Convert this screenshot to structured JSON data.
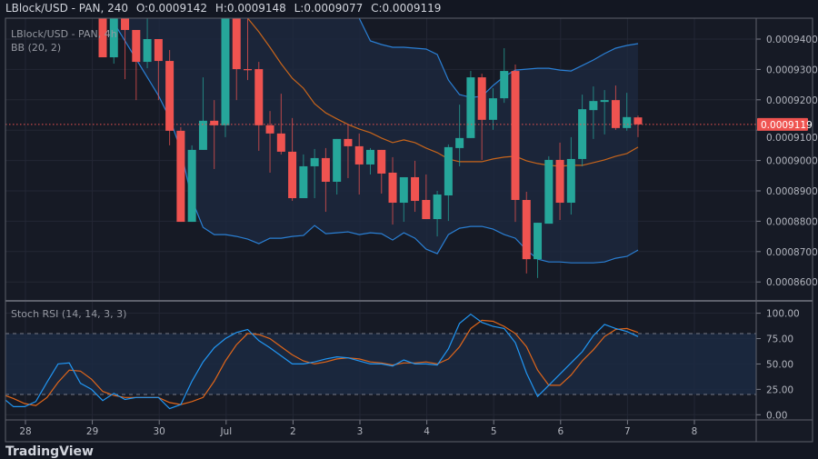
{
  "header": {
    "symbol": "LBlock/USD - PAN, 240",
    "open": "O:0.0009142",
    "high": "H:0.0009148",
    "low": "L:0.0009077",
    "close": "C:0.0009119"
  },
  "main_legend": {
    "symbol": "LBlock/USD - PAN, 4h",
    "indicator": "BB (20, 2)"
  },
  "stoch_legend": "Stoch RSI (14, 14, 3, 3)",
  "price_axis": [
    "0.0009400",
    "0.0009300",
    "0.0009200",
    "0.0009100",
    "0.0009000",
    "0.0008900",
    "0.0008800",
    "0.0008700",
    "0.0008600"
  ],
  "last_price_label": "0.0009119",
  "stoch_axis": [
    "100.00",
    "75.00",
    "50.00",
    "25.00",
    "0.00"
  ],
  "time_axis": [
    "28",
    "29",
    "30",
    "Jul",
    "2",
    "3",
    "4",
    "5",
    "6",
    "7",
    "8"
  ],
  "logo": "TradingView",
  "colors": {
    "up": "#26a69a",
    "down": "#ef5350",
    "bb_band": "#2a7fd4",
    "bb_basis": "#c8651b",
    "stoch_k": "#2196f3",
    "stoch_d": "#e0661a",
    "last_price": "#ef5350",
    "background": "#131722"
  },
  "chart_data": {
    "type": "candlestick",
    "interval": "4h",
    "ohlc": [
      [
        0.0009484,
        0.0009484,
        0.000934,
        0.000934
      ],
      [
        0.000934,
        0.0009469,
        0.0009319,
        0.0009469
      ],
      [
        0.0009469,
        0.0009469,
        0.0009268,
        0.000943
      ],
      [
        0.000943,
        0.000943,
        0.0009199,
        0.0009325
      ],
      [
        0.0009325,
        0.0009469,
        0.0009304,
        0.00094
      ],
      [
        0.00094,
        0.00094,
        0.0009199,
        0.0009328
      ],
      [
        0.0009328,
        0.0009364,
        0.000905,
        0.0009098
      ],
      [
        0.0009098,
        0.000911,
        0.0008798,
        0.0008798
      ],
      [
        0.0008798,
        0.000905,
        0.0008798,
        0.0009035
      ],
      [
        0.0009035,
        0.0009274,
        0.0009035,
        0.0009131
      ],
      [
        0.0009131,
        0.0009199,
        0.0008972,
        0.0009116
      ],
      [
        0.0009116,
        0.0009469,
        0.0009077,
        0.0009469
      ],
      [
        0.0009469,
        0.0009469,
        0.0009199,
        0.0009301
      ],
      [
        0.0009301,
        0.0009469,
        0.0009265,
        0.0009298
      ],
      [
        0.0009301,
        0.0009325,
        0.0009032,
        0.0009116
      ],
      [
        0.0009116,
        0.0009163,
        0.000896,
        0.0009089
      ],
      [
        0.0009089,
        0.000922,
        0.000902,
        0.0009029
      ],
      [
        0.0009029,
        0.000914,
        0.0008867,
        0.0008876
      ],
      [
        0.0008876,
        0.000902,
        0.0008876,
        0.0008981
      ],
      [
        0.0008981,
        0.0009038,
        0.0008876,
        0.0009008
      ],
      [
        0.0009008,
        0.0009041,
        0.0008831,
        0.000893
      ],
      [
        0.000893,
        0.0009071,
        0.0008888,
        0.0009071
      ],
      [
        0.0009071,
        0.0009119,
        0.0008942,
        0.0009047
      ],
      [
        0.0009047,
        0.0009089,
        0.0008888,
        0.0008987
      ],
      [
        0.0008987,
        0.0009041,
        0.0008954,
        0.0009035
      ],
      [
        0.0009035,
        0.0009035,
        0.0008891,
        0.0008957
      ],
      [
        0.000896,
        0.0009011,
        0.0008789,
        0.0008861
      ],
      [
        0.0008861,
        0.0008945,
        0.0008798,
        0.0008945
      ],
      [
        0.0008945,
        0.0008999,
        0.0008831,
        0.0008867
      ],
      [
        0.000887,
        0.0008954,
        0.0008807,
        0.0008807
      ],
      [
        0.0008807,
        0.00089,
        0.000875,
        0.0008888
      ],
      [
        0.0008885,
        0.0009053,
        0.0008801,
        0.0009044
      ],
      [
        0.0009041,
        0.0009184,
        0.0008981,
        0.0009074
      ],
      [
        0.0009074,
        0.0009295,
        0.0009074,
        0.0009274
      ],
      [
        0.0009274,
        0.0009286,
        0.0009002,
        0.0009134
      ],
      [
        0.0009134,
        0.0009238,
        0.0009101,
        0.0009205
      ],
      [
        0.0009205,
        0.000937,
        0.000919,
        0.0009295
      ],
      [
        0.0009295,
        0.0009316,
        0.0008798,
        0.000887
      ],
      [
        0.000887,
        0.0008897,
        0.0008628,
        0.0008675
      ],
      [
        0.0008675,
        0.0008795,
        0.0008613,
        0.0008795
      ],
      [
        0.0008792,
        0.0009014,
        0.0008792,
        0.0009002
      ],
      [
        0.0009002,
        0.0009059,
        0.0008804,
        0.0008861
      ],
      [
        0.0008861,
        0.0009077,
        0.0008822,
        0.0009005
      ],
      [
        0.0009005,
        0.0009217,
        0.0008981,
        0.0009169
      ],
      [
        0.0009166,
        0.0009244,
        0.0009071,
        0.0009196
      ],
      [
        0.0009193,
        0.0009232,
        0.0009086,
        0.0009199
      ],
      [
        0.0009199,
        0.0009247,
        0.0009101,
        0.0009107
      ],
      [
        0.0009107,
        0.0009223,
        0.0009098,
        0.0009143
      ],
      [
        0.0009142,
        0.0009148,
        0.0009077,
        0.0009119
      ]
    ],
    "bb_upper": [
      null,
      null,
      null,
      null,
      null,
      null,
      null,
      null,
      null,
      null,
      null,
      null,
      null,
      null,
      null,
      null,
      null,
      null,
      null,
      null,
      null,
      null,
      null,
      0.0009469,
      0.0009394,
      0.0009382,
      0.0009373,
      0.0009373,
      0.000937,
      0.0009367,
      0.0009349,
      0.0009265,
      0.0009217,
      0.0009208,
      0.0009211,
      0.0009247,
      0.0009277,
      0.0009298,
      0.0009301,
      0.0009304,
      0.0009304,
      0.0009298,
      0.0009295,
      0.0009313,
      0.0009331,
      0.0009352,
      0.000937,
      0.0009379,
      0.0009385
    ],
    "bb_basis": [
      null,
      null,
      null,
      null,
      null,
      null,
      null,
      null,
      null,
      null,
      null,
      null,
      null,
      0.0009469,
      0.0009424,
      0.0009373,
      0.0009319,
      0.0009271,
      0.0009238,
      0.0009187,
      0.0009157,
      0.0009137,
      0.0009119,
      0.0009104,
      0.0009092,
      0.0009074,
      0.0009059,
      0.0009068,
      0.0009059,
      0.0009041,
      0.0009026,
      0.0009005,
      0.0008996,
      0.0008996,
      0.0008996,
      0.0009005,
      0.0009011,
      0.0009014,
      0.0008999,
      0.000899,
      0.0008984,
      0.0008981,
      0.0008984,
      0.0008984,
      0.0008993,
      0.0009002,
      0.0009014,
      0.0009023,
      0.0009044
    ],
    "bb_lower": [
      null,
      0.0009454,
      0.0009394,
      0.0009334,
      0.0009274,
      0.0009214,
      0.000914,
      0.0009035,
      0.000887,
      0.000878,
      0.0008756,
      0.0008756,
      0.000875,
      0.0008741,
      0.0008726,
      0.0008744,
      0.0008744,
      0.000875,
      0.0008753,
      0.0008786,
      0.0008759,
      0.0008762,
      0.0008765,
      0.0008756,
      0.0008762,
      0.0008759,
      0.0008738,
      0.0008762,
      0.0008744,
      0.0008708,
      0.0008693,
      0.0008756,
      0.0008777,
      0.0008783,
      0.0008783,
      0.0008774,
      0.0008756,
      0.0008744,
      0.0008705,
      0.0008675,
      0.0008666,
      0.0008666,
      0.0008663,
      0.0008663,
      0.0008663,
      0.0008666,
      0.0008678,
      0.0008684,
      0.0008705
    ],
    "stoch_k": [
      17,
      8,
      8,
      13,
      32,
      50,
      51,
      31,
      25,
      14,
      21,
      15,
      17,
      17,
      17,
      6,
      10,
      33,
      52,
      66,
      75,
      81,
      84,
      73,
      66,
      58,
      50,
      50,
      52,
      55,
      57,
      56,
      53,
      50,
      50,
      48,
      54,
      50,
      50,
      49,
      65,
      90,
      99,
      91,
      87,
      85,
      71,
      41,
      18,
      29,
      40,
      51,
      62,
      78,
      89,
      85,
      82,
      77
    ],
    "stoch_d": [
      20,
      16,
      11,
      9,
      17,
      32,
      44,
      43,
      35,
      23,
      19,
      17,
      17,
      17,
      17,
      12,
      10,
      13,
      17,
      33,
      53,
      69,
      80,
      79,
      75,
      67,
      59,
      53,
      50,
      52,
      55,
      56,
      55,
      52,
      51,
      49,
      51,
      51,
      52,
      50,
      55,
      67,
      85,
      93,
      92,
      87,
      80,
      67,
      44,
      29,
      29,
      39,
      53,
      64,
      77,
      84,
      85,
      81
    ],
    "stoch_bands": [
      80,
      20
    ],
    "price_range": [
      0.000856,
      0.000947
    ],
    "stoch_range": [
      0,
      100
    ],
    "last_price": 0.0009119,
    "grid": true
  }
}
